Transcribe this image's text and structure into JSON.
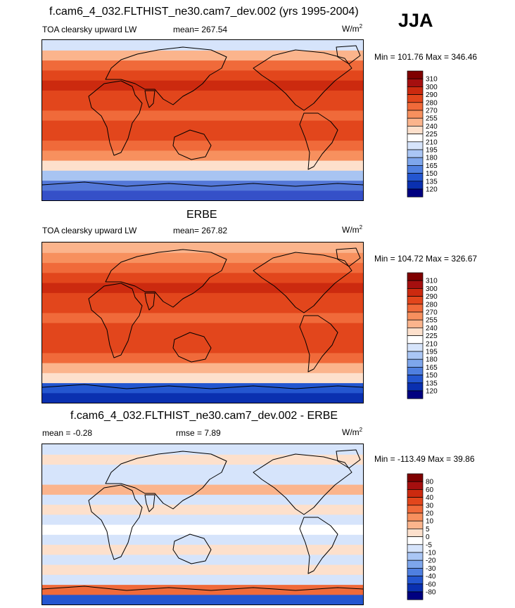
{
  "season": "JJA",
  "panels": [
    {
      "title": "f.cam6_4_032.FLTHIST_ne30.cam7_dev.002 (yrs 1995-2004)",
      "left_label": "TOA clearsky upward LW",
      "stat_label": "mean=",
      "stat_value": "267.54",
      "units": "W/m",
      "units_exp": "2",
      "minmax": "Min = 101.76 Max = 346.46",
      "levels": [
        "310",
        "300",
        "290",
        "280",
        "270",
        "255",
        "240",
        "225",
        "210",
        "195",
        "180",
        "165",
        "150",
        "135",
        "120"
      ],
      "colors": [
        "#7f0000",
        "#a50f0f",
        "#cc2a0f",
        "#e2461c",
        "#f06a3a",
        "#f7905e",
        "#fbb48c",
        "#fde0cc",
        "#ffffff",
        "#d6e4fb",
        "#aac6f5",
        "#7ea6ec",
        "#4f7fe0",
        "#2456d0",
        "#0a30b0",
        "#000080"
      ],
      "fill_profile": [
        "#3550c8",
        "#5478d8",
        "#a8c4f2",
        "#fde0cc",
        "#f7905e",
        "#f06a3a",
        "#e2461c",
        "#e2461c",
        "#f06a3a",
        "#e2461c",
        "#e2461c",
        "#cc2a0f",
        "#e2461c",
        "#f06a3a",
        "#fbb48c",
        "#d6e4fb"
      ]
    },
    {
      "title": "ERBE",
      "left_label": "TOA clearsky upward LW",
      "stat_label": "mean=",
      "stat_value": "267.82",
      "units": "W/m",
      "units_exp": "2",
      "minmax": "Min = 104.72 Max = 326.67",
      "levels": [
        "310",
        "300",
        "290",
        "280",
        "270",
        "255",
        "240",
        "225",
        "210",
        "195",
        "180",
        "165",
        "150",
        "135",
        "120"
      ],
      "colors": [
        "#7f0000",
        "#a50f0f",
        "#cc2a0f",
        "#e2461c",
        "#f06a3a",
        "#f7905e",
        "#fbb48c",
        "#fde0cc",
        "#ffffff",
        "#d6e4fb",
        "#aac6f5",
        "#7ea6ec",
        "#4f7fe0",
        "#2456d0",
        "#0a30b0",
        "#000080"
      ],
      "fill_profile": [
        "#0a30b0",
        "#2456d0",
        "#fde0cc",
        "#fbb48c",
        "#f06a3a",
        "#e2461c",
        "#e2461c",
        "#e2461c",
        "#f06a3a",
        "#e2461c",
        "#e2461c",
        "#cc2a0f",
        "#e2461c",
        "#f06a3a",
        "#f7905e",
        "#fbb48c"
      ]
    },
    {
      "title": "f.cam6_4_032.FLTHIST_ne30.cam7_dev.002 - ERBE",
      "left_label": "mean =  -0.28",
      "stat_label": "rmse =",
      "stat_value": "7.89",
      "units": "W/m",
      "units_exp": "2",
      "minmax": "Min = -113.49 Max =  39.86",
      "levels": [
        "80",
        "60",
        "40",
        "30",
        "20",
        "10",
        "5",
        "0",
        "-5",
        "-10",
        "-20",
        "-30",
        "-40",
        "-60",
        "-80"
      ],
      "colors": [
        "#7f0000",
        "#a50f0f",
        "#cc2a0f",
        "#e2461c",
        "#f06a3a",
        "#f7905e",
        "#fbb48c",
        "#fde0cc",
        "#ffffff",
        "#d6e4fb",
        "#aac6f5",
        "#7ea6ec",
        "#4f7fe0",
        "#2456d0",
        "#0a30b0",
        "#000080"
      ],
      "fill_profile": [
        "#2456d0",
        "#f06a3a",
        "#d6e4fb",
        "#fde0cc",
        "#d6e4fb",
        "#fde0cc",
        "#d6e4fb",
        "#ffffff",
        "#d6e4fb",
        "#fde0cc",
        "#d6e4fb",
        "#fbb48c",
        "#d6e4fb",
        "#d6e4fb",
        "#fde0cc",
        "#d6e4fb"
      ]
    }
  ]
}
